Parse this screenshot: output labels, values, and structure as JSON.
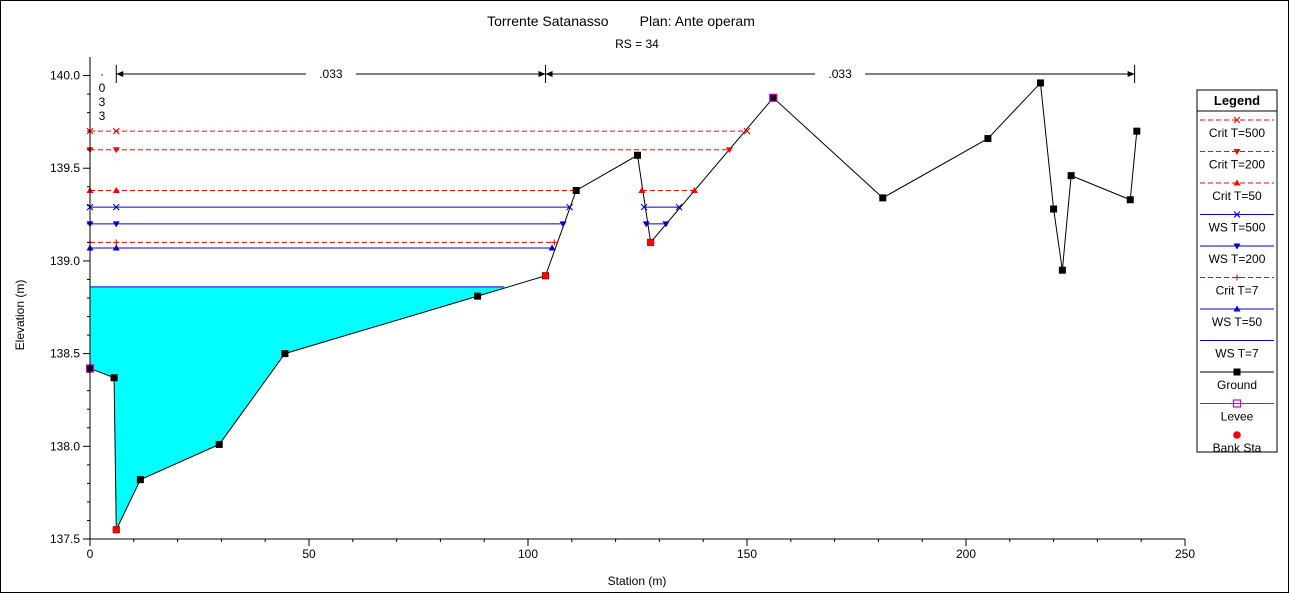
{
  "chart_data": {
    "type": "line",
    "title": "Torrente Satanasso        Plan: Ante operam",
    "subtitle": "RS = 34",
    "xlabel": "Station (m)",
    "ylabel": "Elevation (m)",
    "xlim": [
      0,
      250
    ],
    "ylim": [
      137.5,
      140.1
    ],
    "xticks": [
      "0",
      "50",
      "100",
      "150",
      "200",
      "250"
    ],
    "yticks": [
      "137.5",
      "138.0",
      "138.5",
      "139.0",
      "139.5",
      "140.0"
    ],
    "manning": [
      {
        "label": ".033",
        "from": 6,
        "to": 104
      },
      {
        "label": ".033",
        "from": 104,
        "to": 238.5
      }
    ],
    "vertical_label": [
      "·",
      "0",
      "3",
      "3"
    ],
    "legend": {
      "title": "Legend",
      "placement": "right",
      "entries": [
        "Crit T=500",
        "Crit T=200",
        "Crit T=50",
        "WS T=500",
        "WS T=200",
        "Crit T=7",
        "WS T=50",
        "WS T=7",
        "Ground",
        "Levee",
        "Bank Sta"
      ]
    },
    "series": [
      {
        "name": "Ground",
        "color": "#000000",
        "marker": "square",
        "x": [
          0,
          5.5,
          6,
          11.5,
          29.5,
          44.5,
          88.5,
          104,
          111,
          125,
          128,
          156,
          181,
          205,
          217,
          220,
          222,
          224,
          237.5,
          239
        ],
        "y": [
          138.42,
          138.37,
          137.55,
          137.82,
          138.01,
          138.5,
          138.81,
          138.92,
          139.38,
          139.57,
          139.1,
          139.88,
          139.34,
          139.66,
          139.96,
          139.28,
          138.95,
          139.46,
          139.33,
          139.7
        ]
      },
      {
        "name": "Levee",
        "color": "#cc00cc",
        "marker": "open-square",
        "x": [
          0,
          156
        ],
        "y": [
          138.42,
          139.88
        ]
      },
      {
        "name": "Bank Sta",
        "color": "#ff0000",
        "marker": "circle",
        "x": [
          6,
          104,
          128
        ],
        "y": [
          137.55,
          138.92,
          139.1
        ]
      },
      {
        "name": "WS T=7",
        "color": "#0000cc",
        "line": "solid",
        "fill": "#00ffff",
        "elevation": 138.86,
        "x": [
          0,
          94.5
        ]
      },
      {
        "name": "Crit T=7",
        "color": "#ff0000",
        "line": "dashed",
        "marker": "plus",
        "elevation": 139.1,
        "x": [
          0,
          106
        ]
      },
      {
        "name": "WS T=50",
        "color": "#0000cc",
        "line": "solid",
        "marker": "triangle",
        "elevation": 139.07,
        "x": [
          0,
          105.5
        ]
      },
      {
        "name": "WS T=200",
        "color": "#0000cc",
        "line": "solid",
        "marker": "triangle-down",
        "segments": [
          [
            0,
            108
          ],
          [
            127,
            131.5
          ]
        ],
        "elevation": 139.2
      },
      {
        "name": "WS T=500",
        "color": "#0000cc",
        "line": "solid",
        "marker": "x",
        "segments": [
          [
            0,
            109.5
          ],
          [
            126.5,
            134.5
          ]
        ],
        "elevation": 139.29
      },
      {
        "name": "Crit T=50",
        "color": "#ff0000",
        "line": "dashed",
        "marker": "triangle",
        "segments": [
          [
            0,
            111
          ],
          [
            126,
            138
          ]
        ],
        "elevation": 139.38
      },
      {
        "name": "Crit T=200",
        "color": "#ff0000",
        "line": "dashed",
        "marker": "triangle-down",
        "elevation": 139.6,
        "x": [
          0,
          146
        ]
      },
      {
        "name": "Crit T=500",
        "color": "#ff0000",
        "line": "dashed",
        "marker": "x",
        "elevation": 139.7,
        "x": [
          0,
          150
        ]
      }
    ]
  }
}
